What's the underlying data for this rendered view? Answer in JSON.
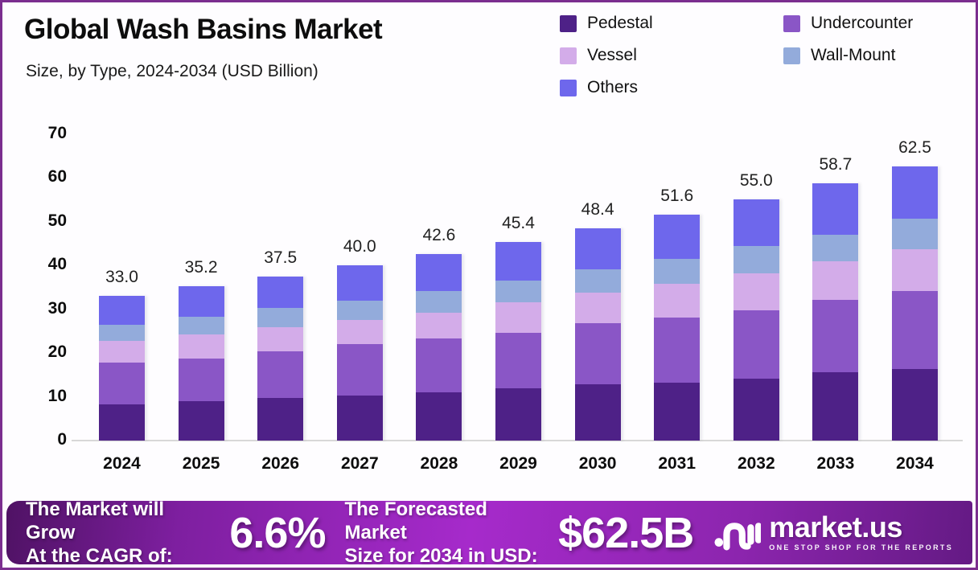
{
  "header": {
    "title": "Global Wash Basins Market",
    "subtitle": "Size, by Type, 2024-2034 (USD Billion)"
  },
  "colors": {
    "pedestal": "#4e2187",
    "undercounter": "#8a56c6",
    "vessel": "#d3ace9",
    "wall_mount": "#93abdb",
    "others": "#6e67ec",
    "frame_border": "#7b2e8f",
    "banner_purple": "#a62acb",
    "baseline_gray": "#d8d8d8"
  },
  "chart_data": {
    "type": "bar",
    "stacked": true,
    "title": "Global Wash Basins Market Size, by Type, 2024-2034 (USD Billion)",
    "xlabel": "",
    "ylabel": "",
    "ylim": [
      0,
      70
    ],
    "yticks": [
      0,
      10,
      20,
      30,
      40,
      50,
      60,
      70
    ],
    "grid": false,
    "legend_position": "top-right",
    "categories": [
      "2024",
      "2025",
      "2026",
      "2027",
      "2028",
      "2029",
      "2030",
      "2031",
      "2032",
      "2033",
      "2034"
    ],
    "series": [
      {
        "name": "Pedestal",
        "color": "#4e2187",
        "values": [
          8.3,
          9.0,
          9.8,
          10.3,
          11.0,
          12.0,
          12.8,
          13.2,
          14.2,
          15.5,
          16.3
        ]
      },
      {
        "name": "Undercounter",
        "color": "#8a56c6",
        "values": [
          9.5,
          9.8,
          10.6,
          11.8,
          12.3,
          12.6,
          14.0,
          14.9,
          15.6,
          16.6,
          17.8
        ]
      },
      {
        "name": "Vessel",
        "color": "#d3ace9",
        "values": [
          5.0,
          5.5,
          5.4,
          5.4,
          5.8,
          7.0,
          7.0,
          7.7,
          8.4,
          8.9,
          9.6
        ]
      },
      {
        "name": "Wall-Mount",
        "color": "#93abdb",
        "values": [
          3.6,
          3.9,
          4.4,
          4.5,
          5.0,
          4.9,
          5.2,
          5.6,
          6.2,
          6.0,
          6.9
        ]
      },
      {
        "name": "Others",
        "color": "#6e67ec",
        "values": [
          6.6,
          7.0,
          7.3,
          8.0,
          8.5,
          8.9,
          9.4,
          10.2,
          10.6,
          11.7,
          11.9
        ]
      }
    ],
    "totals": [
      33.0,
      35.2,
      37.5,
      40.0,
      42.6,
      45.4,
      48.4,
      51.6,
      55.0,
      58.7,
      62.5
    ]
  },
  "legend": {
    "items": [
      {
        "label": "Pedestal",
        "color": "#4e2187"
      },
      {
        "label": "Undercounter",
        "color": "#8a56c6"
      },
      {
        "label": "Vessel",
        "color": "#d3ace9"
      },
      {
        "label": "Wall-Mount",
        "color": "#93abdb"
      },
      {
        "label": "Others",
        "color": "#6e67ec"
      }
    ]
  },
  "banner": {
    "cagr_label_line1": "The Market will Grow",
    "cagr_label_line2": "At the CAGR of:",
    "cagr_value": "6.6%",
    "forecast_label_line1": "The Forecasted Market",
    "forecast_label_line2": "Size for 2034 in USD:",
    "forecast_value": "$62.5B",
    "brand_name": "market.us",
    "brand_tagline": "ONE STOP SHOP FOR THE REPORTS"
  }
}
